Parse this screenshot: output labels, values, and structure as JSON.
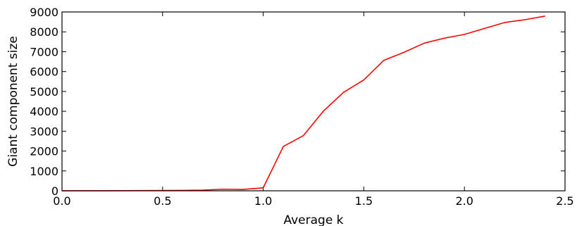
{
  "chart_data": {
    "type": "line",
    "title": "",
    "xlabel": "Average k",
    "ylabel": "Giant component size",
    "xlim": [
      0,
      2.5
    ],
    "ylim": [
      0,
      9000
    ],
    "xticks": [
      0,
      0.5,
      1,
      1.5,
      2,
      2.5
    ],
    "xtick_labels": [
      "0.0",
      "0.5",
      "1.0",
      "1.5",
      "2.0",
      "2.5"
    ],
    "yticks": [
      0,
      1000,
      2000,
      3000,
      4000,
      5000,
      6000,
      7000,
      8000,
      9000
    ],
    "ytick_labels": [
      "0",
      "1000",
      "2000",
      "3000",
      "4000",
      "5000",
      "6000",
      "7000",
      "8000",
      "9000"
    ],
    "grid": false,
    "series": [
      {
        "color": "#ff0000",
        "x": [
          0.0,
          0.1,
          0.2,
          0.3,
          0.4,
          0.5,
          0.6,
          0.7,
          0.8,
          0.9,
          1.0,
          1.1,
          1.2,
          1.3,
          1.4,
          1.5,
          1.6,
          1.7,
          1.8,
          1.9,
          2.0,
          2.1,
          2.2,
          2.3,
          2.4
        ],
        "y": [
          2,
          3,
          4,
          6,
          10,
          15,
          22,
          35,
          80,
          70,
          150,
          2230,
          2780,
          4020,
          4960,
          5580,
          6570,
          6970,
          7430,
          7680,
          7870,
          8170,
          8470,
          8610,
          8790
        ]
      }
    ]
  }
}
